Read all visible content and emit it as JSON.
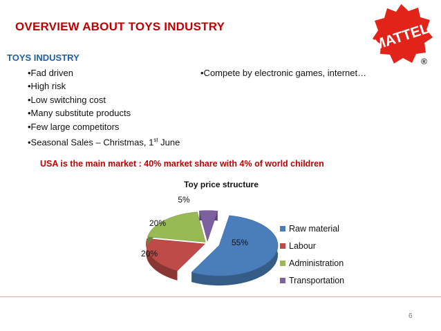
{
  "slide": {
    "title": "OVERVIEW ABOUT TOYS INDUSTRY",
    "logo_text": "MATTEL",
    "registered_mark": "®",
    "subheading": "TOYS INDUSTRY",
    "bullets": [
      "•Fad driven",
      "•High risk",
      "•Low switching cost",
      "•Many substitute products",
      "•Few large competitors"
    ],
    "seasonal_prefix": "•Seasonal Sales – Christmas, 1",
    "seasonal_sup": "st",
    "seasonal_suffix": " June",
    "bullet_right": "•Compete by electronic games, internet…",
    "market_note": "USA is the main market : 40% market share with 4% of world children",
    "page_number": "6"
  },
  "colors": {
    "title": "#c00000",
    "subheading": "#1f5f9e",
    "logo": "#e2231a"
  },
  "chart_data": {
    "type": "pie",
    "title": "Toy price structure",
    "categories": [
      "Raw material",
      "Labour",
      "Administration",
      "Transportation"
    ],
    "values": [
      55,
      20,
      20,
      5
    ],
    "data_labels": [
      "55%",
      "20%",
      "20%",
      "5%"
    ],
    "colors": [
      "#4a7ebb",
      "#be4b48",
      "#98b954",
      "#7d60a0"
    ],
    "legend_position": "right"
  }
}
